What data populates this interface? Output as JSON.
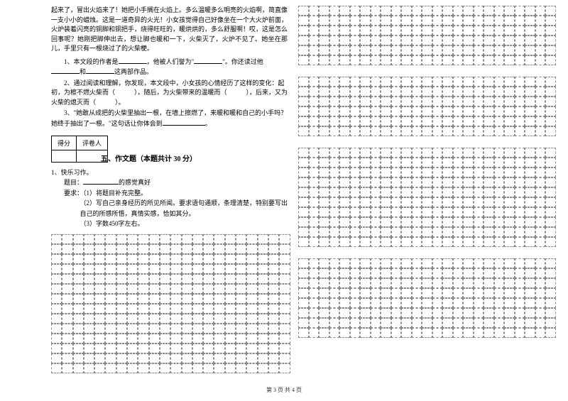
{
  "passage": "起来了，冒出火焰来了！她把小手搁在火焰上。多么温暖多么明亮的火焰啊，简直像一支小小的蜡烛。这是一道奇异的火光！小女孩觉得自己好像坐在一个大火炉前面，火炉装着闪亮的铜脚和铜把手，烧得旺旺的，暖烘烘的，多么舒服啊！哎，这是怎么回事呢？她刚把脚伸出去，想让脚也暖和一下，火柴灭了，火炉不见了。她坐在那儿，手里只有一根烧过了的火柴梗。",
  "q1": {
    "text_a": "1、本文段的作者是",
    "text_b": "，他被人们誉为\"",
    "text_c": "\"。你还读过他",
    "text_d": "和",
    "text_e": "这两部作品。"
  },
  "q2": {
    "text_a": "2、通过阅读和理解，你发现，本文段中，小女孩的心情经历了这样的变化：起初，为檫不燃火柴而（　　　），随后，为火柴带来的温暖而（　　　），后来，又为火柴的熄灭而（　　　）。"
  },
  "q3": {
    "text_a": "3、\"她敢从成把的火柴里抽出一根，在墙上擦燃了，来暖和暖和自己的小手吗？她终于抽出了一根。\"这句话让你体会到",
    "text_b": "。"
  },
  "score_table": {
    "col1": "得分",
    "col2": "评卷人"
  },
  "section5": {
    "title": "五、作文题（本题共计 30 分）",
    "item1": "1、快乐习作。",
    "topic_label": "题目：",
    "topic_text": "的感觉真好",
    "req_label": "要求：",
    "req1": "（1）将题目补充完整。",
    "req2": "（2）写自己亲身经历的所见所闻。要求语句通顺，条理清楚，特别要写出自己的所感所悟，真情实感，恰如其分。",
    "req3": "（3）字数450字左右。"
  },
  "grid": {
    "left_cols": 22,
    "left_rows": 14,
    "right_cols": 25,
    "right_sections": [
      {
        "rows": 6
      },
      {
        "rows": 6
      },
      {
        "rows": 10
      },
      {
        "rows": 8
      }
    ]
  },
  "footer": "第 3 页 共 4 页",
  "colors": {
    "text": "#000000",
    "bg": "#ffffff",
    "grid_border": "#888888"
  }
}
